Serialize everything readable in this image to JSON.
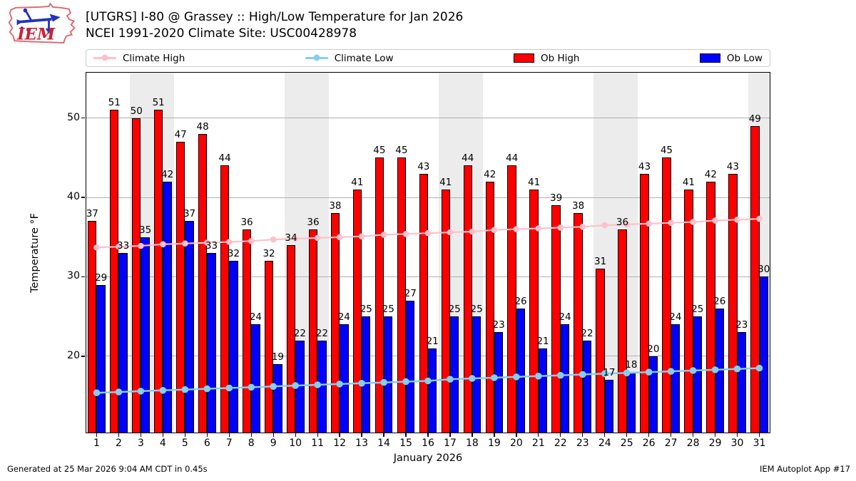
{
  "header": {
    "logo_text": "IEM",
    "title_line1": "[UTGRS] I-80 @ Grassey  :: High/Low Temperature for Jan 2026",
    "title_line2": "NCEI 1991-2020 Climate Site: USC00428978"
  },
  "legend": {
    "items": [
      {
        "label": "Climate High",
        "type": "line",
        "color": "#ffc0cb"
      },
      {
        "label": "Climate Low",
        "type": "line",
        "color": "#87ceeb"
      },
      {
        "label": "Ob High",
        "type": "patch",
        "color": "#ff0000"
      },
      {
        "label": "Ob Low",
        "type": "patch",
        "color": "#0000ff"
      }
    ]
  },
  "chart_data": {
    "type": "bar",
    "subtype": "daily high/low bars with climatology lines",
    "categories": [
      1,
      2,
      3,
      4,
      5,
      6,
      7,
      8,
      9,
      10,
      11,
      12,
      13,
      14,
      15,
      16,
      17,
      18,
      19,
      20,
      21,
      22,
      23,
      24,
      25,
      26,
      27,
      28,
      29,
      30,
      31
    ],
    "series": [
      {
        "name": "Ob High",
        "type": "bar",
        "color": "#ff0000",
        "values": [
          37,
          51,
          50,
          51,
          47,
          48,
          44,
          36,
          32,
          34,
          36,
          38,
          41,
          45,
          45,
          43,
          41,
          44,
          42,
          44,
          41,
          39,
          38,
          31,
          36,
          43,
          45,
          41,
          42,
          43,
          49
        ]
      },
      {
        "name": "Ob Low",
        "type": "bar",
        "color": "#0000ff",
        "values": [
          29,
          33,
          35,
          42,
          37,
          33,
          32,
          24,
          19,
          22,
          22,
          24,
          25,
          25,
          27,
          21,
          25,
          25,
          23,
          26,
          21,
          24,
          22,
          17,
          18,
          20,
          24,
          25,
          26,
          23,
          30
        ]
      },
      {
        "name": "Climate High",
        "type": "line",
        "color": "#ffc0cb",
        "values": [
          33.7,
          33.8,
          33.9,
          34.1,
          34.2,
          34.3,
          34.4,
          34.5,
          34.7,
          34.8,
          34.9,
          35.0,
          35.1,
          35.3,
          35.4,
          35.5,
          35.6,
          35.7,
          35.9,
          36.0,
          36.1,
          36.2,
          36.3,
          36.5,
          36.6,
          36.7,
          36.8,
          36.9,
          37.1,
          37.2,
          37.3
        ]
      },
      {
        "name": "Climate Low",
        "type": "line",
        "color": "#87ceeb",
        "values": [
          15.4,
          15.5,
          15.6,
          15.7,
          15.8,
          15.9,
          16.0,
          16.1,
          16.2,
          16.3,
          16.4,
          16.5,
          16.6,
          16.7,
          16.8,
          16.9,
          17.1,
          17.2,
          17.3,
          17.4,
          17.5,
          17.6,
          17.7,
          17.8,
          17.9,
          18.0,
          18.1,
          18.2,
          18.3,
          18.4,
          18.5
        ]
      }
    ],
    "bar_value_labels": true,
    "xlabel": "January 2026",
    "ylabel": "Temperature °F",
    "yticks": [
      20,
      30,
      40,
      50
    ],
    "ylim": [
      10.3,
      55.8
    ],
    "grid": true,
    "grid_color": "#b0b0b0",
    "weekend_bands": [
      [
        3,
        4
      ],
      [
        10,
        11
      ],
      [
        17,
        18
      ],
      [
        24,
        25
      ],
      [
        31,
        31
      ]
    ],
    "band_color": "#ececec",
    "legend_position": "top"
  },
  "footer": {
    "left": "Generated at 25 Mar 2026 9:04 AM CDT in 0.45s",
    "right": "IEM Autoplot App #17"
  }
}
